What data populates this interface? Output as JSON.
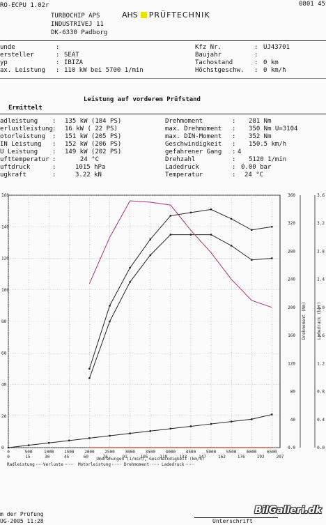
{
  "header": {
    "software": "RO-ECPU 1.02r",
    "brand_left": "AHS",
    "brand_right": "PRÜFTECHNIK",
    "code": "0801 45",
    "company": [
      "TURBOCHIP APS",
      "INDUSTRIVEJ 11",
      "DK-6330 Padborg"
    ]
  },
  "vehicle": {
    "left": [
      {
        "label": "unde",
        "value": ""
      },
      {
        "label": "ersteller",
        "value": "SEAT"
      },
      {
        "label": "yp",
        "value": "IBIZA"
      },
      {
        "label": "ax. Leistung",
        "value": "110 kW bei 5700 1/min"
      }
    ],
    "right": [
      {
        "label": "Kfz Nr.",
        "value": "UJ43701"
      },
      {
        "label": "Baujahr",
        "value": ""
      },
      {
        "label": "Tachostand",
        "value": "0 km"
      },
      {
        "label": "Höchstgeschw.",
        "value": "0 km/h"
      }
    ]
  },
  "results": {
    "section_title": "Leistung auf vorderem Prüfstand",
    "subtitle": "Ermittelt",
    "left": [
      {
        "label": "adleistung",
        "value": "135 kW (184 PS)"
      },
      {
        "label": "erlustleistung",
        "value": "16 kW ( 22 PS)"
      },
      {
        "label": "otorleistung",
        "value": "151 kW (205 PS)"
      },
      {
        "label": "IN Leistung",
        "value": "152 kW (206 PS)"
      },
      {
        "label": "U Leistung",
        "value": "149 kW (202 PS)"
      },
      {
        "label": "ufttemperatur",
        "value": "24 °C"
      },
      {
        "label": "uftdruck",
        "value": "1015 hPa"
      },
      {
        "label": "ugkraft",
        "value": "3.22 kN"
      }
    ],
    "right": [
      {
        "label": "Drehmoment",
        "value": "281 Nm"
      },
      {
        "label": "max. Drehmoment",
        "value": "350 Nm U=3104"
      },
      {
        "label": "max. DIN-Moment",
        "value": "352 Nm"
      },
      {
        "label": "Geschwindigkeit",
        "value": "150.5 km/h"
      },
      {
        "label": "gefahrener Gang",
        "value": "4"
      },
      {
        "label": "Drehzahl",
        "value": "5120 1/min"
      },
      {
        "label": "Ladedruck",
        "value": "0.00 bar"
      },
      {
        "label": "Temperatur",
        "value": "24 °C"
      }
    ]
  },
  "chart_data": {
    "type": "line",
    "xlabel": "Umdrehungen (1/min), Geschwindigkeit (km/h)",
    "xlim": [
      0,
      6700
    ],
    "x_ticks": [
      "0",
      "500",
      "1000",
      "1500",
      "2000",
      "2500",
      "3000",
      "3500",
      "4000",
      "4500",
      "5000",
      "5500",
      "6000",
      "6500"
    ],
    "speed_ticks": [
      "0",
      "15",
      "30",
      "45",
      "60",
      "76",
      "91",
      "105",
      "119",
      "133",
      "147",
      "162",
      "176",
      "192",
      "207"
    ],
    "ylim": [
      0,
      160
    ],
    "y_ticks": [
      "0",
      "20",
      "40",
      "60",
      "80",
      "100",
      "120",
      "140",
      "160"
    ],
    "y2label": "Drehmoment (Nm)",
    "y2lim": [
      0,
      360
    ],
    "y2_ticks": [
      "0.0",
      "40",
      "80",
      "120",
      "160",
      "200",
      "240",
      "280",
      "320",
      "360"
    ],
    "y3label": "Ladedruck (bar)",
    "y3_ticks": [
      "0.0",
      "0.4",
      "0.8",
      "1.2",
      "1.6",
      "2.0",
      "2.4",
      "2.8",
      "3.2",
      "3.6"
    ],
    "series": [
      {
        "name": "Motorleistung",
        "axis": "y",
        "color": "#222222",
        "x": [
          2000,
          2500,
          3000,
          3500,
          4000,
          4500,
          5000,
          5500,
          6000,
          6500
        ],
        "values": [
          50,
          90,
          114,
          132,
          147,
          149,
          151,
          145,
          138,
          140
        ]
      },
      {
        "name": "Radleistung",
        "axis": "y",
        "color": "#222222",
        "x": [
          2000,
          2500,
          3000,
          3500,
          4000,
          4500,
          5000,
          5500,
          6000,
          6500
        ],
        "values": [
          44,
          80,
          105,
          122,
          135,
          135,
          135,
          128,
          119,
          120
        ]
      },
      {
        "name": "Verluste",
        "axis": "y",
        "color": "#222222",
        "x": [
          0,
          500,
          1000,
          1500,
          2000,
          2500,
          3000,
          3500,
          4000,
          4500,
          5000,
          5500,
          6000,
          6500
        ],
        "values": [
          0,
          1.5,
          3,
          4.5,
          6,
          7.5,
          9,
          10.5,
          12,
          13.5,
          15,
          16.5,
          18,
          21
        ]
      },
      {
        "name": "Drehmoment",
        "axis": "y2",
        "color": "#a8327a",
        "x": [
          2000,
          2500,
          3000,
          3500,
          4000,
          4500,
          5000,
          5500,
          6000,
          6500
        ],
        "values": [
          234,
          300,
          352,
          350,
          346,
          310,
          278,
          240,
          210,
          200
        ]
      },
      {
        "name": "Ladedruck",
        "axis": "y3",
        "color": "#c0392b",
        "x": [
          2000,
          6500
        ],
        "values": [
          0,
          0
        ]
      }
    ]
  },
  "legend": [
    "Radleistung",
    "Verluste",
    "Motorleistung",
    "Drehmoment",
    "Ladedruck"
  ],
  "footer": {
    "date_label": "m der Prüfung",
    "date_value": "UG-2005 11:28",
    "signature_label": "Unterschrift",
    "watermark": "BilGalleri.dk"
  }
}
